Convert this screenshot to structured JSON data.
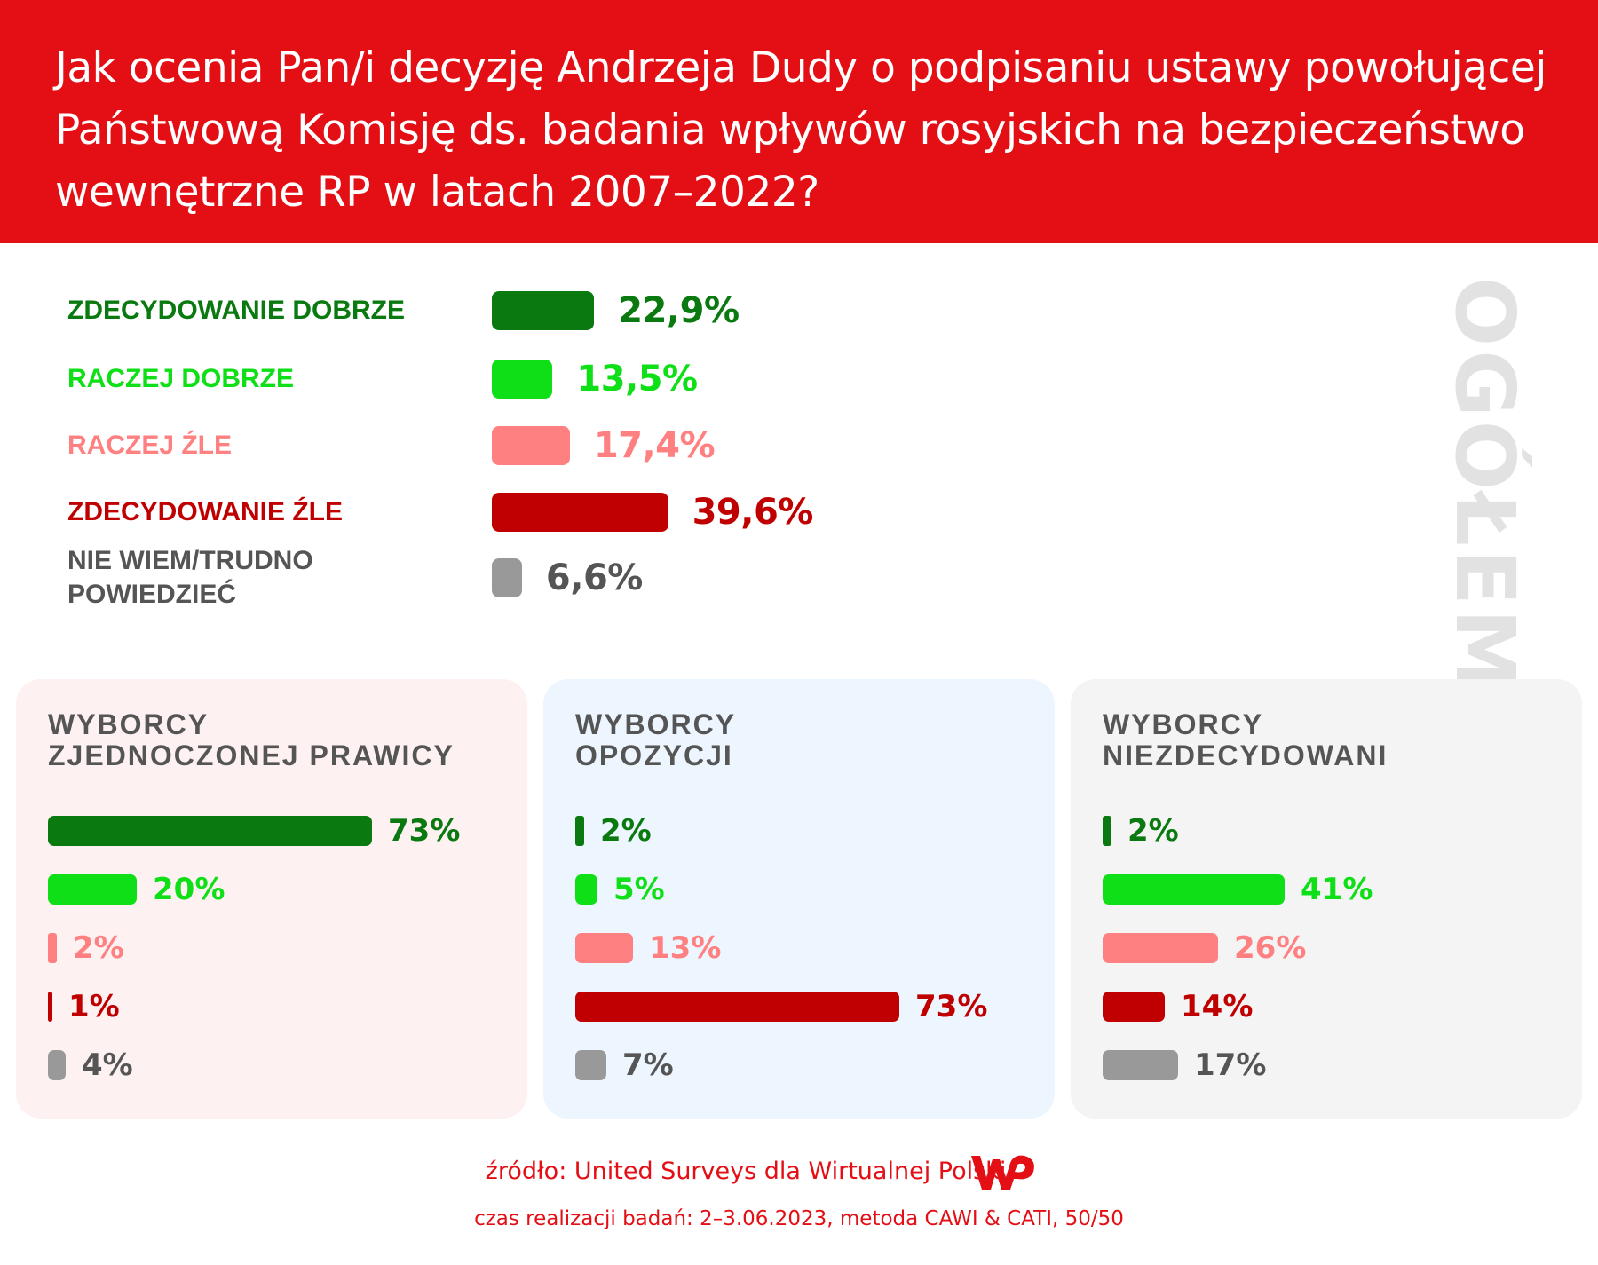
{
  "header": {
    "title": "Jak ocenia Pan/i decyzję Andrzeja Dudy o podpisaniu ustawy powołującej Państwową Komisję ds. badania wpływów rosyjskich na bezpieczeństwo wewnętrzne RP w latach 2007–2022?"
  },
  "side_title": "OGÓŁEM",
  "colors": {
    "header_bg": "#e30f14",
    "zdecydowanie_dobrze": "#0a7a10",
    "raczej_dobrze": "#0fdf17",
    "raczej_zle": "#ff8080",
    "zdecydowanie_zle": "#c00000",
    "nie_wiem": "#999999",
    "nie_wiem_text": "#555555"
  },
  "chart_data": [
    {
      "type": "bar",
      "title": "OGÓŁEM",
      "categories": [
        "ZDECYDOWANIE DOBRZE",
        "RACZEJ DOBRZE",
        "RACZEJ ŹLE",
        "ZDECYDOWANIE ŹLE",
        "NIE WIEM/TRUDNO POWIEDZIEĆ"
      ],
      "category_lines": [
        [
          "ZDECYDOWANIE DOBRZE"
        ],
        [
          "RACZEJ DOBRZE"
        ],
        [
          "RACZEJ ŹLE"
        ],
        [
          "ZDECYDOWANIE ŹLE"
        ],
        [
          "NIE WIEM/TRUDNO",
          "POWIEDZIEĆ"
        ]
      ],
      "values": [
        22.9,
        13.5,
        17.4,
        39.6,
        6.6
      ],
      "labels": [
        "22,9%",
        "13,5%",
        "17,4%",
        "39,6%",
        "6,6%"
      ]
    },
    {
      "type": "bar",
      "title": "WYBORCY ZJEDNOCZONEJ PRAWICY",
      "title_lines": [
        "WYBORCY",
        "ZJEDNOCZONEJ PRAWICY"
      ],
      "values": [
        73,
        20,
        2,
        1,
        4
      ],
      "labels": [
        "73%",
        "20%",
        "2%",
        "1%",
        "4%"
      ]
    },
    {
      "type": "bar",
      "title": "WYBORCY OPOZYCJI",
      "title_lines": [
        "WYBORCY",
        "OPOZYCJI"
      ],
      "values": [
        2,
        5,
        13,
        73,
        7
      ],
      "labels": [
        "2%",
        "5%",
        "13%",
        "73%",
        "7%"
      ]
    },
    {
      "type": "bar",
      "title": "WYBORCY NIEZDECYDOWANI",
      "title_lines": [
        "WYBORCY",
        "NIEZDECYDOWANI"
      ],
      "values": [
        2,
        41,
        26,
        14,
        17
      ],
      "labels": [
        "2%",
        "41%",
        "26%",
        "14%",
        "17%"
      ]
    }
  ],
  "footer": {
    "source": "źródło: United Surveys dla Wirtualnej Polski",
    "method": "czas realizacji badań: 2–3.06.2023, metoda CAWI & CATI, 50/50",
    "logo": "WP"
  }
}
